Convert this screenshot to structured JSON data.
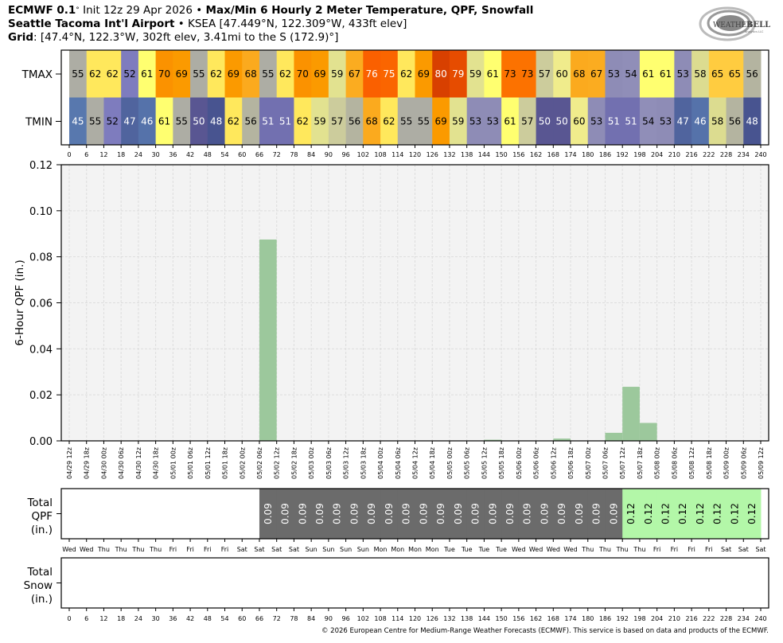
{
  "header": {
    "model": "ECMWF 0.1",
    "deg": "°",
    "init": " Init 12z 29 Apr 2026 • ",
    "product": "Max/Min 6 Hourly 2 Meter Temperature,  QPF,  Snowfall",
    "station_name": "Seattle Tacoma Int'l Airport",
    "station_info": " • KSEA [47.449°N, 122.309°W, 433ft elev]",
    "grid_label": "Grid",
    "grid_info": ": [47.4°N, 122.3°W, 302ft elev, 3.41mi to the S (172.9)°]"
  },
  "logo": {
    "text": "WeatherBELL",
    "subtext": "Analytics LLC"
  },
  "footer": "© 2026 European Centre for Medium-Range Weather Forecasts (ECMWF). This service is based on data and products of the ECMWF.",
  "chart_data": [
    {
      "type": "table",
      "name": "temperature-table",
      "row_labels": [
        "TMAX",
        "TMIN"
      ],
      "x_ticks": [
        0,
        6,
        12,
        18,
        24,
        30,
        36,
        42,
        48,
        54,
        60,
        66,
        72,
        78,
        84,
        90,
        96,
        102,
        108,
        114,
        120,
        126,
        132,
        138,
        144,
        150,
        156,
        162,
        168,
        174,
        180,
        186,
        192,
        198,
        204,
        210,
        216,
        222,
        228,
        234,
        240
      ],
      "tmax": [
        55,
        62,
        62,
        52,
        61,
        70,
        69,
        55,
        62,
        69,
        68,
        55,
        62,
        70,
        69,
        59,
        67,
        76,
        75,
        62,
        69,
        80,
        79,
        59,
        61,
        73,
        73,
        57,
        60,
        68,
        67,
        53,
        54,
        61,
        61,
        53,
        58,
        65,
        65,
        56
      ],
      "tmin": [
        45,
        55,
        52,
        47,
        46,
        61,
        55,
        50,
        48,
        62,
        56,
        51,
        51,
        62,
        59,
        57,
        56,
        68,
        62,
        55,
        55,
        69,
        59,
        53,
        53,
        61,
        57,
        50,
        50,
        60,
        53,
        51,
        51,
        54,
        53,
        47,
        46,
        58,
        56,
        48
      ]
    },
    {
      "type": "bar",
      "name": "qpf-6hr",
      "ylabel": "6-Hour QPF (in.)",
      "ylim": [
        0,
        0.12
      ],
      "y_ticks": [
        "0.00",
        "0.02",
        "0.04",
        "0.06",
        "0.08",
        "0.10",
        "0.12"
      ],
      "grid": true,
      "bar_color": "#9cc89c",
      "x_labels": [
        "04/29 12z",
        "04/29 18z",
        "04/30 00z",
        "04/30 06z",
        "04/30 12z",
        "04/30 18z",
        "05/01 00z",
        "05/01 06z",
        "05/01 12z",
        "05/01 18z",
        "05/02 00z",
        "05/02 06z",
        "05/02 12z",
        "05/02 18z",
        "05/03 00z",
        "05/03 06z",
        "05/03 12z",
        "05/03 18z",
        "05/04 00z",
        "05/04 06z",
        "05/04 12z",
        "05/04 18z",
        "05/05 00z",
        "05/05 06z",
        "05/05 12z",
        "05/05 18z",
        "05/06 00z",
        "05/06 06z",
        "05/06 12z",
        "05/06 18z",
        "05/07 00z",
        "05/07 06z",
        "05/07 12z",
        "05/07 18z",
        "05/08 00z",
        "05/08 06z",
        "05/08 12z",
        "05/08 18z",
        "05/09 00z",
        "05/09 06z",
        "05/09 12z"
      ],
      "values": [
        0,
        0,
        0,
        0,
        0,
        0,
        0,
        0,
        0,
        0,
        0,
        0.0875,
        0,
        0,
        0,
        0,
        0,
        0,
        0,
        0,
        0,
        0,
        0,
        0,
        0.0005,
        0,
        0,
        0,
        0.001,
        0,
        0,
        0.0035,
        0.0235,
        0.0078,
        0,
        0,
        0,
        0,
        0,
        0
      ]
    },
    {
      "type": "table",
      "name": "total-qpf",
      "row_label": [
        "Total",
        "QPF",
        "(in.)"
      ],
      "values": [
        null,
        null,
        null,
        null,
        null,
        null,
        null,
        null,
        null,
        null,
        null,
        "0.09",
        "0.09",
        "0.09",
        "0.09",
        "0.09",
        "0.09",
        "0.09",
        "0.09",
        "0.09",
        "0.09",
        "0.09",
        "0.09",
        "0.09",
        "0.09",
        "0.09",
        "0.09",
        "0.09",
        "0.09",
        "0.09",
        "0.09",
        "0.09",
        "0.12",
        "0.12",
        "0.12",
        "0.12",
        "0.12",
        "0.12",
        "0.12",
        "0.12"
      ],
      "colors": {
        "0.09": "#6b6b6b",
        "0.12": "#b3f7a8"
      },
      "x_labels": [
        "Wed",
        "Wed",
        "Thu",
        "Thu",
        "Thu",
        "Thu",
        "Fri",
        "Fri",
        "Fri",
        "Fri",
        "Sat",
        "Sat",
        "Sat",
        "Sat",
        "Sun",
        "Sun",
        "Sun",
        "Sun",
        "Mon",
        "Mon",
        "Mon",
        "Mon",
        "Tue",
        "Tue",
        "Tue",
        "Tue",
        "Wed",
        "Wed",
        "Wed",
        "Wed",
        "Thu",
        "Thu",
        "Thu",
        "Thu",
        "Fri",
        "Fri",
        "Fri",
        "Fri",
        "Sat",
        "Sat",
        "Sat"
      ]
    },
    {
      "type": "table",
      "name": "total-snow",
      "row_label": [
        "Total",
        "Snow",
        "(in.)"
      ],
      "values": [],
      "x_ticks": [
        0,
        6,
        12,
        18,
        24,
        30,
        36,
        42,
        48,
        54,
        60,
        66,
        72,
        78,
        84,
        90,
        96,
        102,
        108,
        114,
        120,
        126,
        132,
        138,
        144,
        150,
        156,
        162,
        168,
        174,
        180,
        186,
        192,
        198,
        204,
        210,
        216,
        222,
        228,
        234,
        240
      ]
    }
  ]
}
